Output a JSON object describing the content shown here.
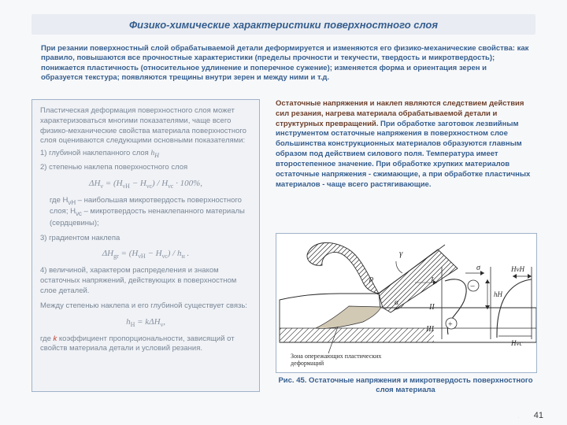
{
  "title": "Физико-химические характеристики поверхностного слоя",
  "intro": "При резании поверхностный слой обрабатываемой детали деформируется и изменяются его физико-механические свойства: как правило, повышаются все прочностные характеристики (пределы прочности и текучести, твердость и микротвердость); понижается пластичность (относительное удлинение и поперечное сужение); изменяется форма и ориентация зерен и образуется текстура; появляются трещины внутри зерен и между ними и т.д.",
  "left": {
    "p1": "Пластическая деформация поверхностного слоя может характеризоваться многими показателями, чаще всего физико-механические свойства материала поверхностного слоя оцениваются следующими основными показателями:",
    "item1": "1)  глубиной наклепанного слоя  ",
    "item1_sym": "h",
    "item1_sub": "H",
    "item2": "2) степенью наклепа поверхностного слоя",
    "formula1_html": "ΔH<sub>ν</sub> = (H<sub>νH</sub> − H<sub>νc</sub>) / H<sub>νc</sub> · 100%,",
    "where1": "где  H<sub>νH</sub> – наибольшая микротвердость поверхностного слоя;  H<sub>νc</sub>  – микротвердость ненаклепанного материалы (сердцевины);",
    "item3": "3) градиентом наклепа",
    "formula2_html": "ΔH<sub>gr</sub> = (H<sub>νH</sub> − H<sub>νc</sub>) / h<sub>н</sub> .",
    "item4": "4) величиной, характером распределения и знаком остаточных напряжений, действующих в поверхностном слое деталей.",
    "p2": "Между степенью наклепа и его глубиной существует связь:",
    "formula3_html": "h<sub>H</sub> = kΔH<sub>ν</sub>,",
    "p3_prefix": "где ",
    "p3_k": "k",
    "p3_rest": "  коэффициент пропорциональности, зависящий от свойств материала детали и условий резания."
  },
  "right": {
    "accent": "Остаточные напряжения и наклеп являются следствием действия сил резания, нагрева материала обрабатываемой детали и структурных превращений.",
    "rest": " При обработке заготовок лезвийным инструментом остаточные напряжения в поверхностном слое большинства конструк­ционных материалов образуются главным образом под действием силового поля. Температура имеет второстепенное значение. При обработке хрупких материалов остаточные напряжения - сжимающие, а при обработке пластичных материалов - чаще всего растягивающие."
  },
  "caption": "Рис. 45. Остаточные напряжения и микротвердость поверхностного слоя материала",
  "pagenum": "41",
  "diagram": {
    "outer_border": "#2b2b2b",
    "hatch_color": "#2b2b2b",
    "zone_fill": "#d2c9b5",
    "zone_text": "Зона опережающих пластических деформаций",
    "greek_gamma": "γ",
    "greek_rho": "ρ",
    "greek_alpha": "α",
    "sigma": "σ",
    "H_vH": "HνH",
    "H_vc": "Hνc",
    "h_H": "hH",
    "rome": [
      "I",
      "II",
      "III"
    ],
    "sign_minus": "−",
    "sign_plus": "+"
  }
}
